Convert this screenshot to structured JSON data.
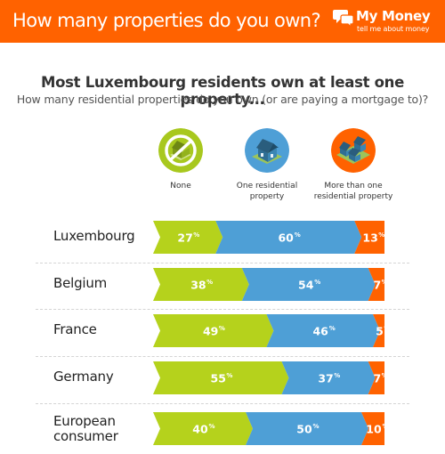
{
  "header": {
    "title": "How many properties do you own?",
    "brand_name": "My Money",
    "brand_tagline": "tell me about money"
  },
  "headline": "Most Luxembourg residents own at least one property...",
  "subtitle": "How many residential properties do you own (or are paying a mortgage to)?",
  "legend": [
    {
      "label": "None",
      "icon": "crossed-house-icon",
      "color": "#a8c81e"
    },
    {
      "label": "One residential property",
      "icon": "single-house-icon",
      "color": "#4e9fd6"
    },
    {
      "label": "More than one residential property",
      "icon": "multiple-houses-icon",
      "color": "#ff6200"
    }
  ],
  "colors": {
    "none": "#b5d21c",
    "one": "#4e9fd6",
    "more": "#ff6200",
    "brand": "#ff6200"
  },
  "chart_data": {
    "type": "bar",
    "stacked": true,
    "orientation": "horizontal",
    "unit": "%",
    "categories": [
      "Luxembourg",
      "Belgium",
      "France",
      "Germany",
      "European consumer"
    ],
    "series": [
      {
        "name": "None",
        "values": [
          27,
          38,
          49,
          55,
          40
        ]
      },
      {
        "name": "One residential property",
        "values": [
          60,
          54,
          46,
          37,
          50
        ]
      },
      {
        "name": "More than one residential property",
        "values": [
          13,
          7,
          5,
          7,
          10
        ]
      }
    ]
  }
}
